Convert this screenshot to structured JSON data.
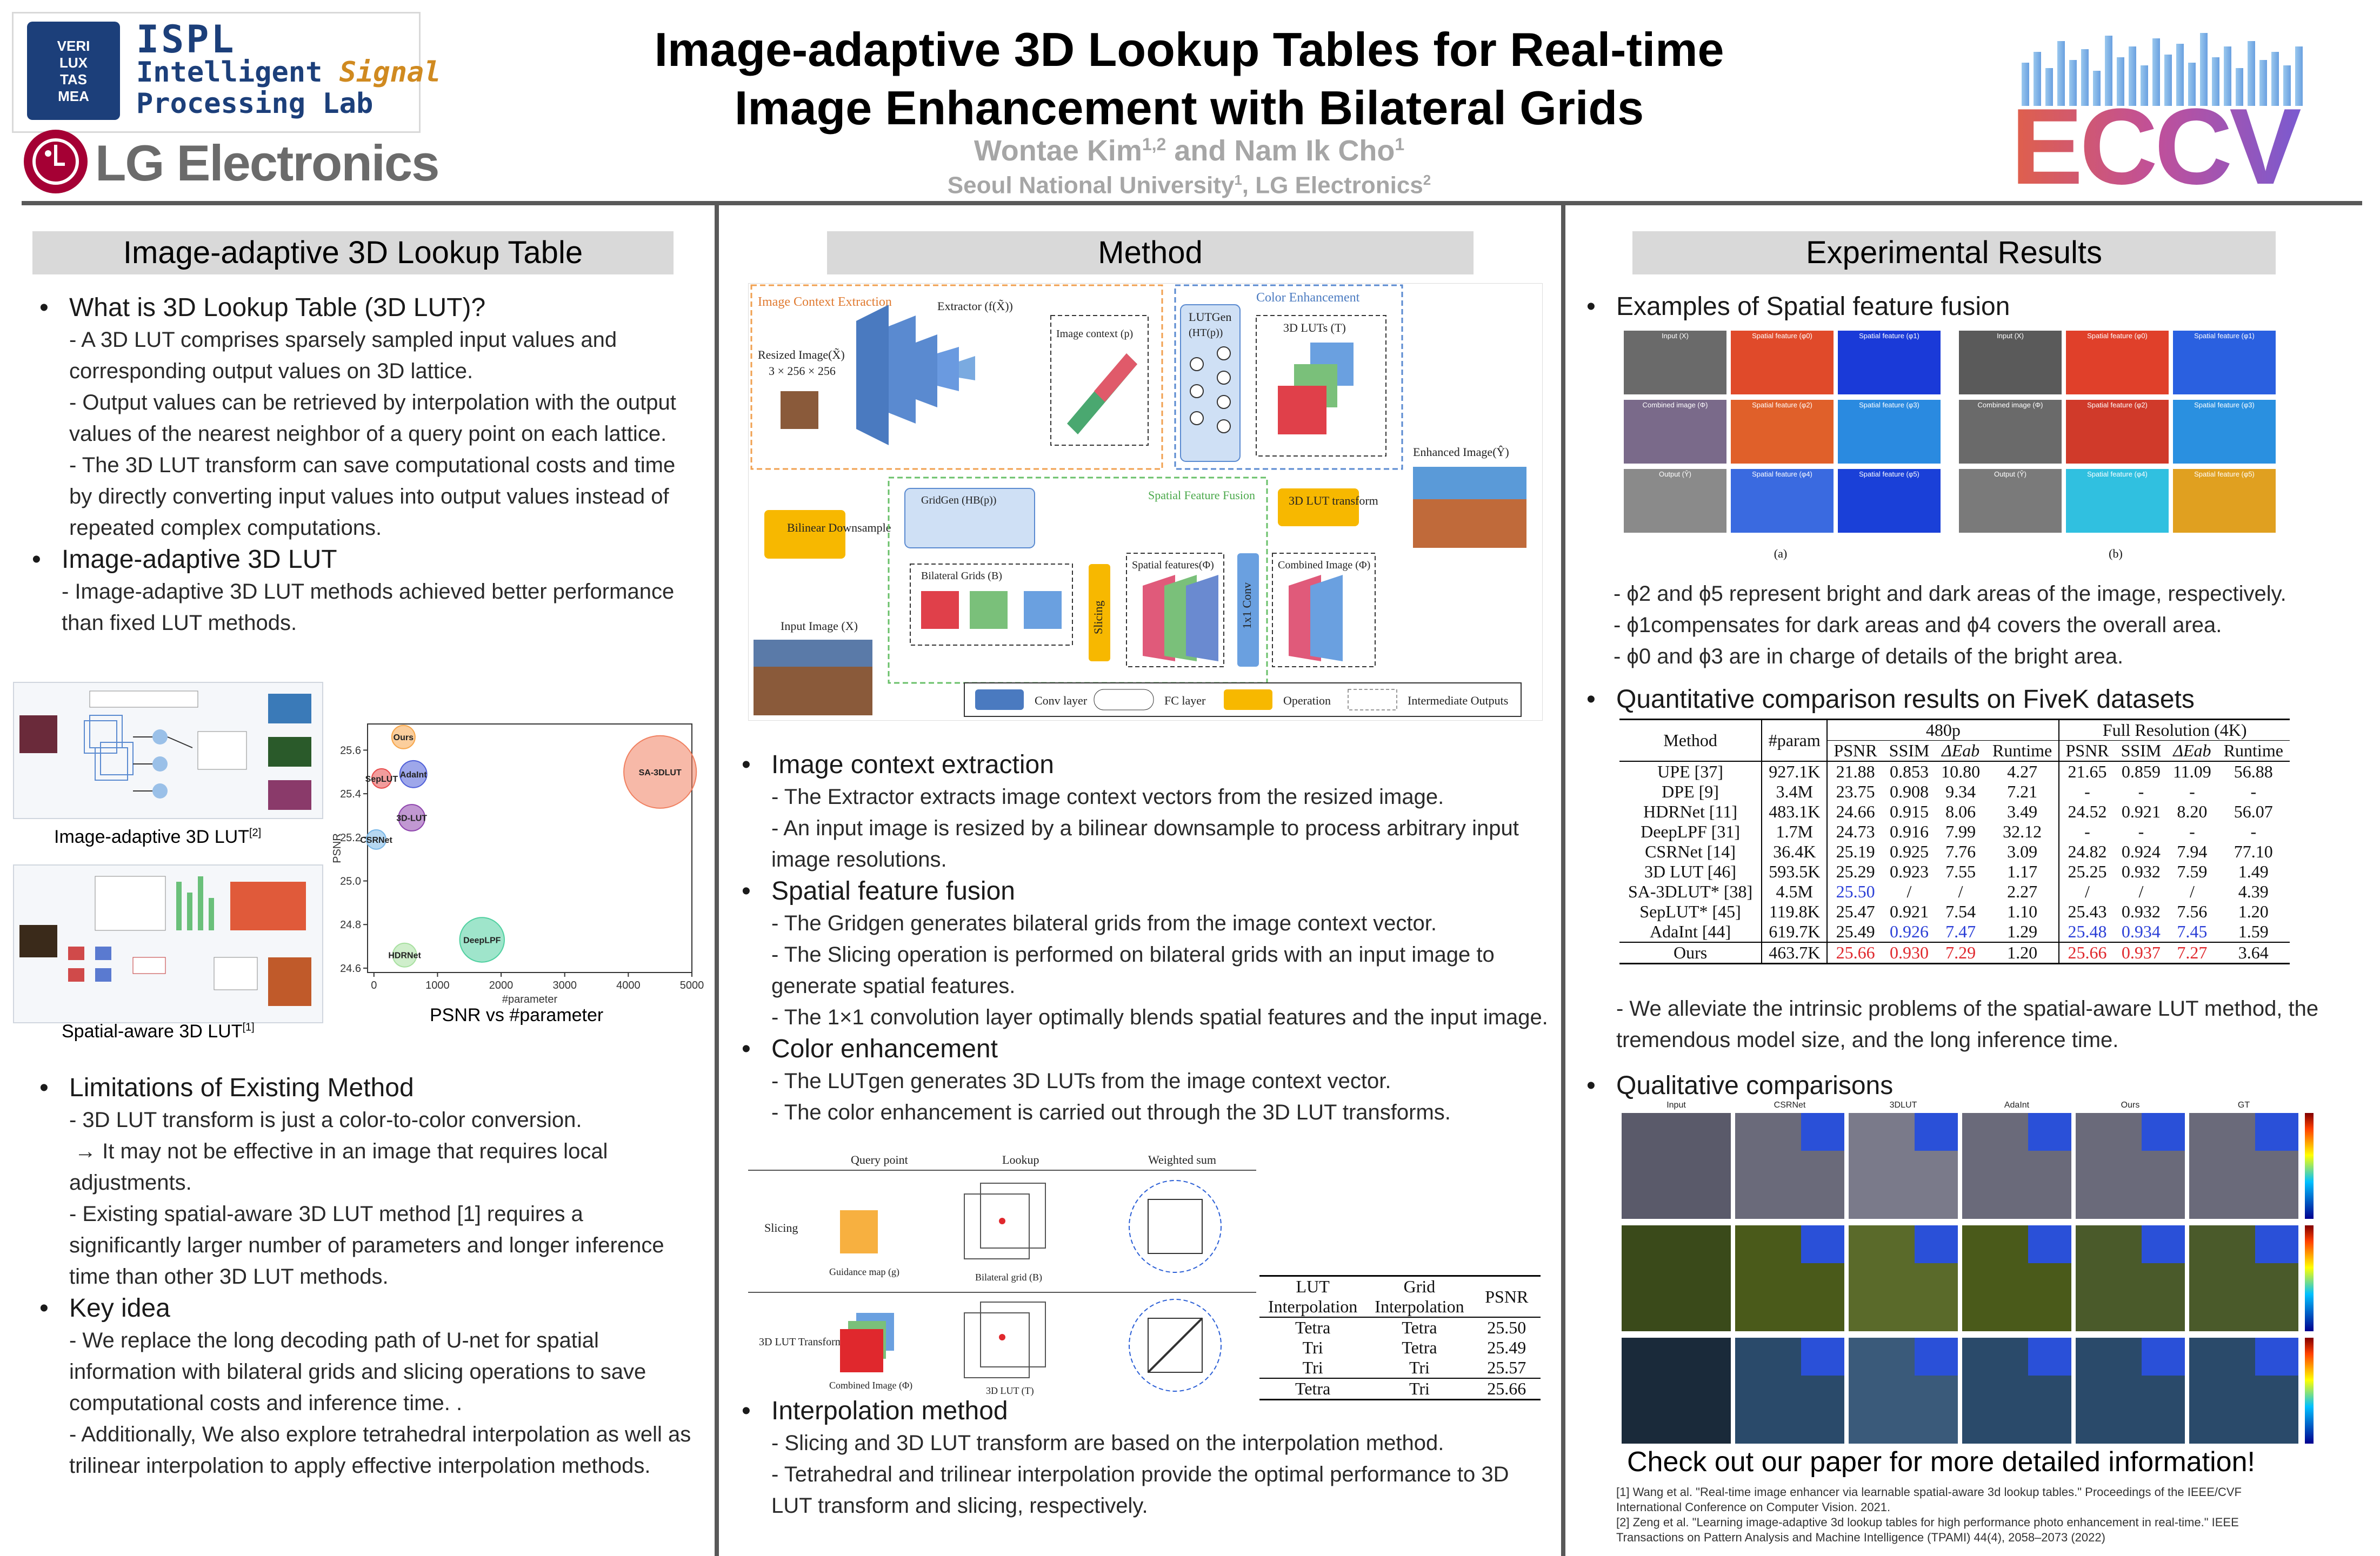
{
  "header": {
    "title_line1": "Image-adaptive 3D Lookup Tables for Real-time",
    "title_line2": "Image Enhancement with Bilateral Grids",
    "authors": "Wontae Kim1,2 and Nam Ik Cho1",
    "affiliation": "Seoul National University1, LG Electronics2",
    "ispl_line1": "ISPL",
    "ispl_line2a": "Intelligent ",
    "ispl_line2b": "Signal",
    "ispl_line3": "Processing Lab",
    "ispl_seal": [
      "VERI",
      "LUX",
      "TAS",
      "MEA"
    ],
    "lg_text": "LG Electronics",
    "eccv_text": "ECCV"
  },
  "left": {
    "section_title": "Image-adaptive 3D Lookup Table",
    "b1_title": "What is 3D Lookup Table (3D LUT)?",
    "b1_lines": [
      "- A 3D LUT comprises sparsely sampled input values and",
      "corresponding output values on 3D lattice.",
      "- Output values can be retrieved by interpolation with the output",
      "values of the nearest neighbor of a query point on each lattice.",
      "-  The 3D LUT transform can save computational costs and time",
      "by directly converting input values into output values instead of",
      "repeated complex computations."
    ],
    "b2_title": "Image-adaptive 3D LUT",
    "b2_lines": [
      "- Image-adaptive 3D LUT methods achieved better performance",
      "than fixed LUT methods."
    ],
    "fig_caption_1": "Image-adaptive 3D LUT",
    "fig_caption_1_sup": "[2]",
    "fig_caption_2": "Spatial-aware 3D LUT",
    "fig_caption_2_sup": "[1]",
    "bubble_caption": "PSNR vs #parameter",
    "b3_title": "Limitations of Existing Method",
    "b3_lines": [
      "- 3D LUT transform is just a color-to-color conversion.",
      "  → It may not be effective in an image that requires local",
      "adjustments.",
      "- Existing spatial-aware 3D LUT method [1] requires a",
      "significantly larger number of parameters and longer inference",
      "time than other 3D LUT methods."
    ],
    "b4_title": "Key idea",
    "b4_lines": [
      "- We replace the long decoding path of U-net for spatial",
      "information with bilateral grids and slicing operations to save",
      "computational costs and inference time. .",
      "- Additionally, We also explore tetrahedral interpolation as well as",
      "trilinear interpolation to apply effective interpolation methods."
    ]
  },
  "bubble_chart": {
    "chart_data": {
      "type": "scatter",
      "title": "",
      "xlabel": "#parameter",
      "ylabel": "PSNR",
      "xlim": [
        -100,
        5000
      ],
      "ylim": [
        24.58,
        25.72
      ],
      "xticks": [
        0,
        1000,
        2000,
        3000,
        4000,
        5000
      ],
      "yticks": [
        24.6,
        24.8,
        25.0,
        25.2,
        25.4,
        25.6
      ],
      "points": [
        {
          "label": "Ours",
          "x": 464,
          "y": 25.66,
          "color": "#f7a64a"
        },
        {
          "label": "AdaInt",
          "x": 620,
          "y": 25.49,
          "color": "#4f5fd8"
        },
        {
          "label": "SepLUT",
          "x": 120,
          "y": 25.47,
          "color": "#e84a4a"
        },
        {
          "label": "3D-LUT",
          "x": 594,
          "y": 25.29,
          "color": "#8e44ad"
        },
        {
          "label": "CSRNet",
          "x": 36,
          "y": 25.19,
          "color": "#7ab8e8"
        },
        {
          "label": "SA-3DLUT",
          "x": 4500,
          "y": 25.5,
          "color": "#f08060"
        },
        {
          "label": "DeepLPF",
          "x": 1700,
          "y": 24.73,
          "color": "#50d0a0"
        },
        {
          "label": "HDRNet",
          "x": 483,
          "y": 24.66,
          "color": "#a8e0a0"
        }
      ]
    }
  },
  "method": {
    "section_title": "Method",
    "diagram": {
      "ctx_label": "Image Context Extraction",
      "extractor": "Extractor (f(X̃))",
      "resized": "Resized Image(X̃)",
      "resized_size": "3 × 256 × 256",
      "img_ctx": "Image context (p)",
      "color_enh": "Color Enhancement",
      "lutgen": "LUTGen",
      "lutgen_sub": "(HT(p))",
      "luts": "3D LUTs (T)",
      "bilinear": "Bilinear Downsample",
      "gridgen": "GridGen (HB(p))",
      "sff": "Spatial Feature Fusion",
      "lut_transform": "3D LUT transform",
      "enhanced": "Enhanced Image(Ŷ)",
      "bgrids": "Bilateral Grids (B)",
      "slicing": "Slicing",
      "spatial_features": "Spatial features(Φ)",
      "conv1x1": "1x1 Conv",
      "combined": "Combined Image (Φ)",
      "input": "Input Image (X)",
      "legend": [
        "Conv layer",
        "FC layer",
        "Operation",
        "Intermediate Outputs"
      ]
    },
    "b1_title": "Image context extraction",
    "b1_lines": [
      "- The Extractor extracts image context vectors from the resized image.",
      "- An input image is resized by a bilinear downsample to process arbitrary input",
      "image resolutions."
    ],
    "b2_title": "Spatial feature fusion",
    "b2_lines": [
      "- The Gridgen generates bilateral grids from the image context vector.",
      "- The Slicing operation is performed on bilateral grids with an input image to",
      "generate spatial features.",
      "- The 1×1 convolution layer optimally blends spatial features and the input image."
    ],
    "b3_title": "Color enhancement",
    "b3_lines": [
      "- The LUTgen generates 3D LUTs from the image context vector.",
      "- The color enhancement is carried out through the 3D LUT transforms."
    ],
    "interp_fig": {
      "col1": "Query point",
      "col2": "Lookup",
      "col3": "Weighted sum",
      "row1": "Slicing",
      "row2": "3D LUT Transform",
      "guidance": "Guidance map (g)",
      "bgrid": "Bilateral grid (B)",
      "combined": "Combined Image (Φ)",
      "lut": "3D LUT (T)"
    },
    "lut_table": {
      "headers": [
        "LUT Interpolation",
        "Grid Interpolation",
        "PSNR"
      ],
      "rows": [
        [
          "Tetra",
          "Tetra",
          "25.50"
        ],
        [
          "Tri",
          "Tetra",
          "25.49"
        ],
        [
          "Tri",
          "Tri",
          "25.57"
        ],
        [
          "Tetra",
          "Tri",
          "25.66"
        ]
      ]
    },
    "b4_title": "Interpolation method",
    "b4_lines": [
      "- Slicing and 3D LUT transform are based on the interpolation method.",
      "- Tetrahedral and trilinear interpolation provide the optimal performance to 3D",
      "LUT transform and slicing, respectively."
    ]
  },
  "results": {
    "section_title": "Experimental Results",
    "b1_title": "Examples of Spatial feature fusion",
    "fig_a": "(a)",
    "fig_b": "(b)",
    "tile_labels_a": [
      "Input (X)",
      "Spatial feature (φ0)",
      "Spatial feature (φ1)",
      "Combined image (Φ)",
      "Spatial feature (φ2)",
      "Spatial feature (φ3)",
      "Output (Ŷ)",
      "Spatial feature (φ4)",
      "Spatial feature (φ5)"
    ],
    "b1_lines": [
      "- ϕ2 and ϕ5 represent bright and dark areas of the image, respectively.",
      "- ϕ1compensates for dark areas and ϕ4 covers the overall area.",
      "- ϕ0 and ϕ3 are in charge of details of the bright area."
    ],
    "b2_title": "Quantitative comparison results on FiveK datasets",
    "table": {
      "group1": "480p",
      "group2": "Full Resolution (4K)",
      "headers": [
        "Method",
        "#param",
        "PSNR",
        "SSIM",
        "ΔEab",
        "Runtime",
        "PSNR",
        "SSIM",
        "ΔEab",
        "Runtime"
      ],
      "rows": [
        [
          "UPE [37]",
          "927.1K",
          "21.88",
          "0.853",
          "10.80",
          "4.27",
          "21.65",
          "0.859",
          "11.09",
          "56.88"
        ],
        [
          "DPE [9]",
          "3.4M",
          "23.75",
          "0.908",
          "9.34",
          "7.21",
          "-",
          "-",
          "-",
          "-"
        ],
        [
          "HDRNet [11]",
          "483.1K",
          "24.66",
          "0.915",
          "8.06",
          "3.49",
          "24.52",
          "0.921",
          "8.20",
          "56.07"
        ],
        [
          "DeepLPF [31]",
          "1.7M",
          "24.73",
          "0.916",
          "7.99",
          "32.12",
          "-",
          "-",
          "-",
          "-"
        ],
        [
          "CSRNet [14]",
          "36.4K",
          "25.19",
          "0.925",
          "7.76",
          "3.09",
          "24.82",
          "0.924",
          "7.94",
          "77.10"
        ],
        [
          "3D LUT [46]",
          "593.5K",
          "25.29",
          "0.923",
          "7.55",
          "1.17",
          "25.25",
          "0.932",
          "7.59",
          "1.49"
        ],
        [
          "SA-3DLUT* [38]",
          "4.5M",
          "25.50",
          "/",
          "/",
          "2.27",
          "/",
          "/",
          "/",
          "4.39"
        ],
        [
          "SepLUT* [45]",
          "119.8K",
          "25.47",
          "0.921",
          "7.54",
          "1.10",
          "25.43",
          "0.932",
          "7.56",
          "1.20"
        ],
        [
          "AdaInt [44]",
          "619.7K",
          "25.49",
          "0.926",
          "7.47",
          "1.29",
          "25.48",
          "0.934",
          "7.45",
          "1.59"
        ],
        [
          "Ours",
          "463.7K",
          "25.66",
          "0.930",
          "7.29",
          "1.20",
          "25.66",
          "0.937",
          "7.27",
          "3.64"
        ]
      ]
    },
    "b2_lines": [
      "- We alleviate the intrinsic problems of the spatial-aware LUT method, the",
      "tremendous model size, and the long inference time."
    ],
    "b3_title": "Qualitative comparisons",
    "qual_cols": [
      "Input",
      "CSRNet",
      "3DLUT",
      "AdaInt",
      "Ours",
      "GT"
    ],
    "cta": "Check out our paper for more detailed information!",
    "refs": [
      "[1] Wang et al. \"Real-time image enhancer via learnable spatial-aware 3d lookup tables.\" Proceedings of the IEEE/CVF",
      "International Conference on Computer Vision. 2021.",
      "[2] Zeng et al. \"Learning image-adaptive 3d lookup tables for high performance photo enhancement in real-time.\" IEEE",
      "Transactions on Pattern Analysis and Machine Intelligence (TPAMI) 44(4), 2058–2073 (2022)"
    ]
  },
  "colors": {
    "rule": "#595959",
    "section_bg": "#d9d9d9",
    "accent_blue": "#2b3fd6",
    "accent_red": "#e0282d",
    "eccv_grad_start": "#e0604a",
    "eccv_grad_end": "#7a5ad0"
  }
}
